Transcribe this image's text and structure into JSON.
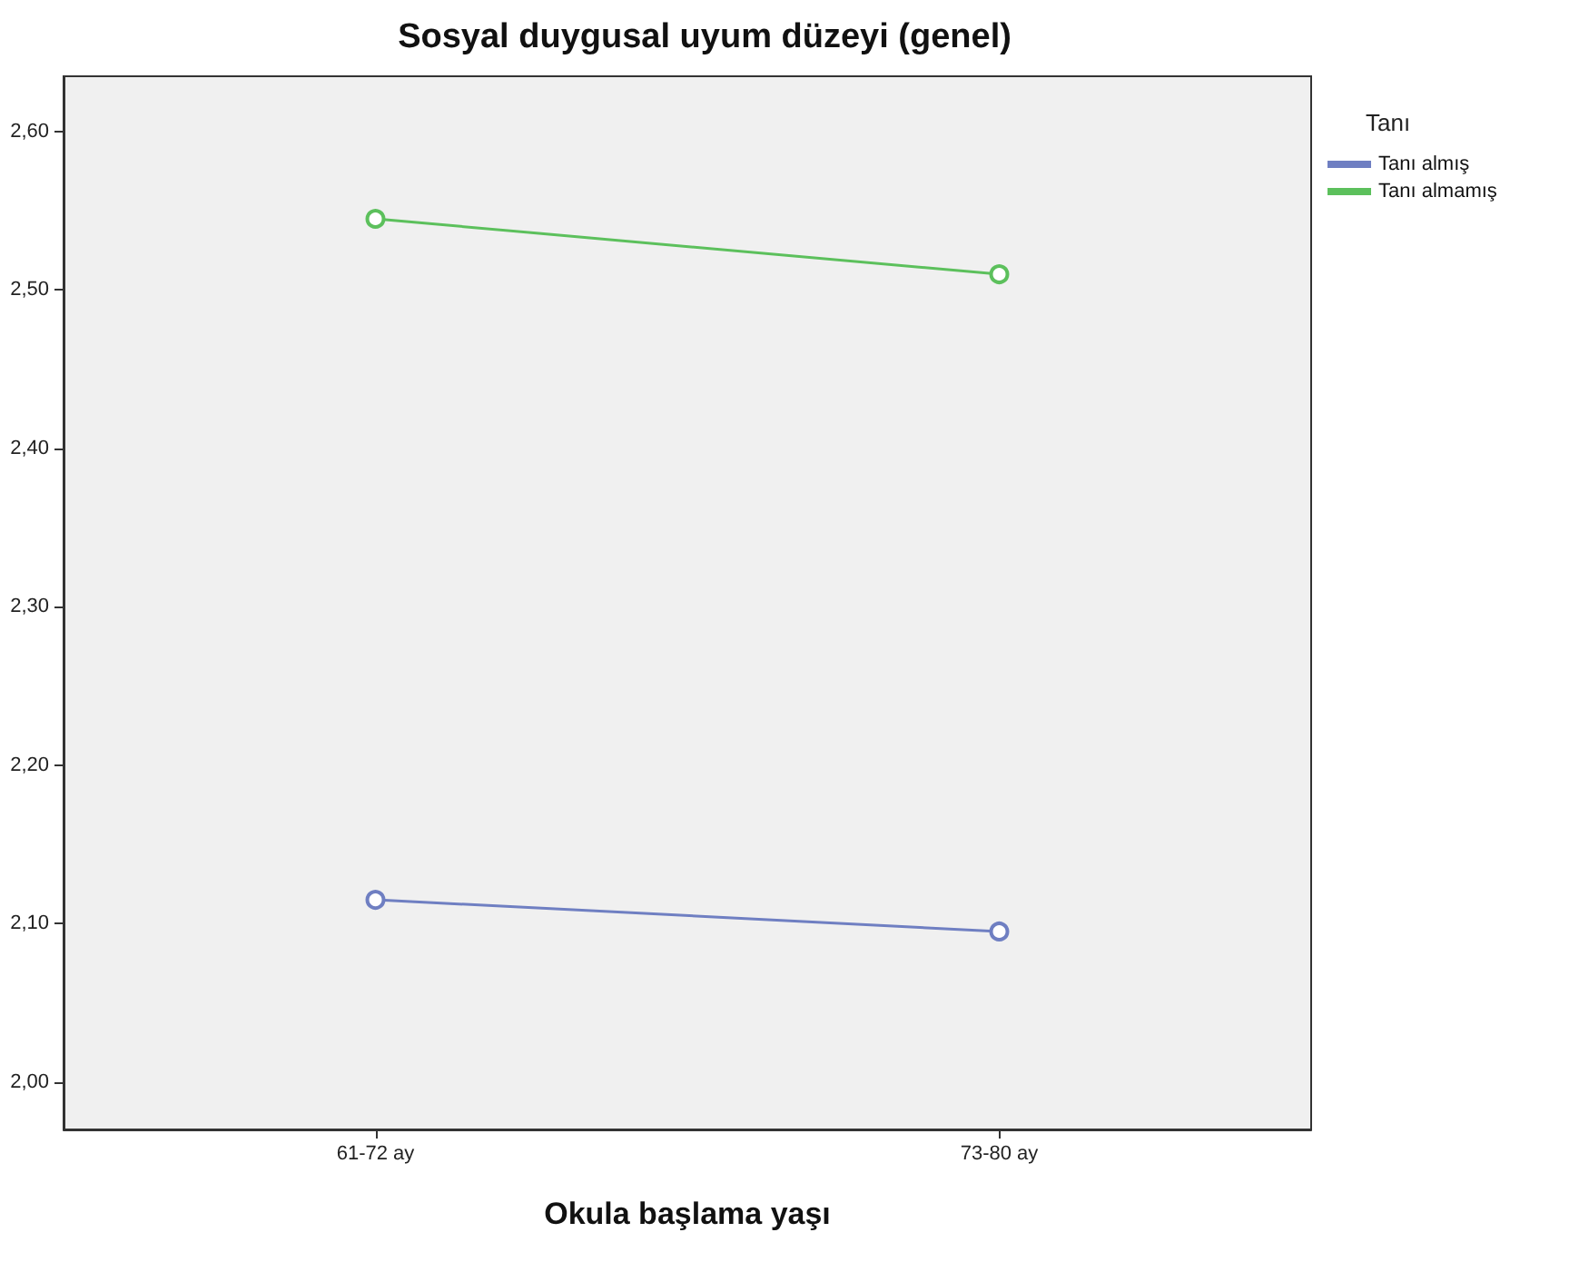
{
  "chart_data": {
    "type": "line",
    "title": "Sosyal duygusal uyum düzeyi (genel)",
    "xlabel": "Okula başlama yaşı",
    "legend_title": "Tanı",
    "categories": [
      "61-72 ay",
      "73-80 ay"
    ],
    "series": [
      {
        "name": "Tanı almış",
        "color": "#6f7fc2",
        "values": [
          2.115,
          2.095
        ]
      },
      {
        "name": "Tanı almamış",
        "color": "#5cc05c",
        "values": [
          2.545,
          2.51
        ]
      }
    ],
    "ylim": [
      1.97,
      2.635
    ],
    "yticks": [
      {
        "value": 2.0,
        "label": "2,00"
      },
      {
        "value": 2.1,
        "label": "2,10"
      },
      {
        "value": 2.2,
        "label": "2,20"
      },
      {
        "value": 2.3,
        "label": "2,30"
      },
      {
        "value": 2.4,
        "label": "2,40"
      },
      {
        "value": 2.5,
        "label": "2,50"
      },
      {
        "value": 2.6,
        "label": "2,60"
      }
    ],
    "legend": "top right",
    "marker": "circle",
    "line_style": "solid"
  }
}
